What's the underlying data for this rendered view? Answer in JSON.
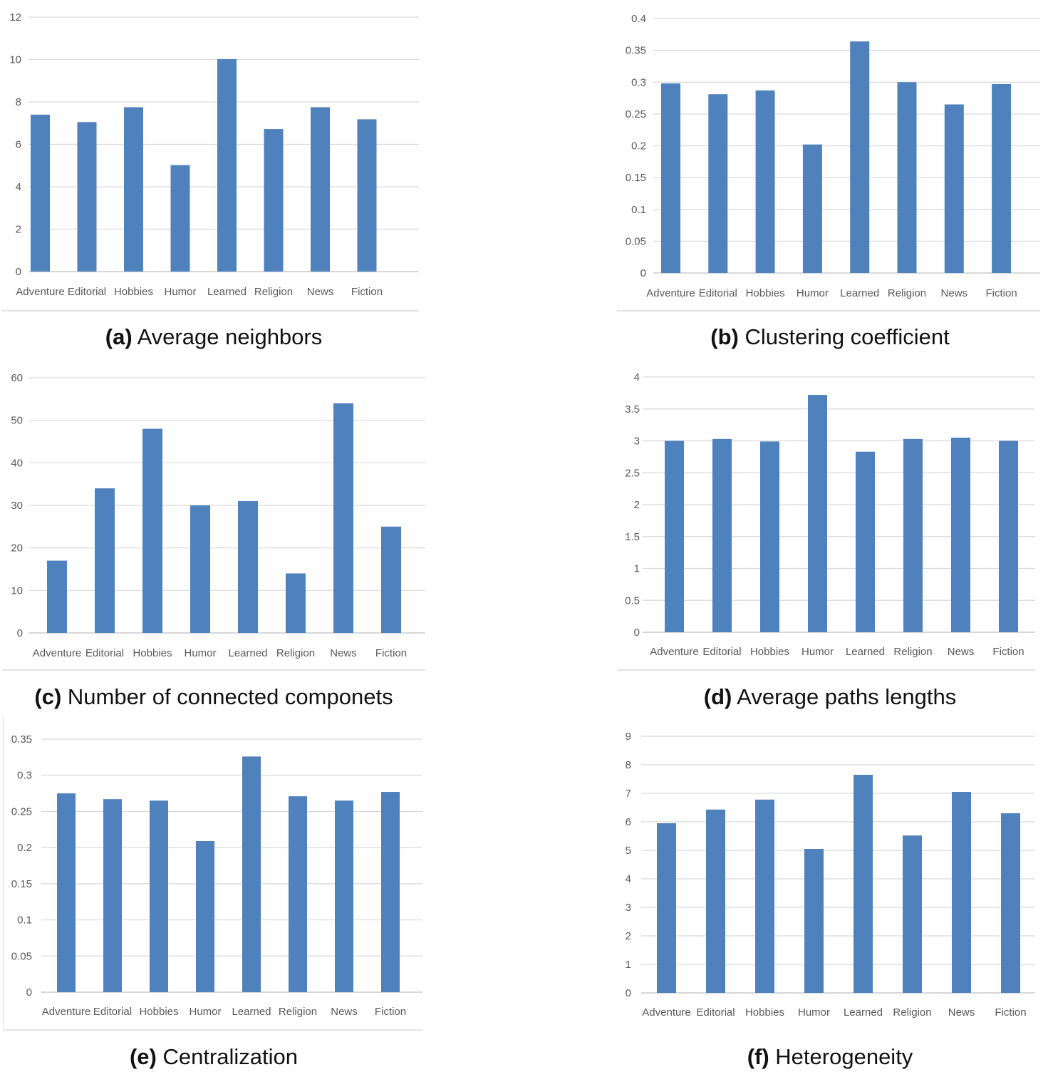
{
  "charts": {
    "color": "#4F81BD",
    "categories": [
      "Adventure",
      "Editorial",
      "Hobbies",
      "Humor",
      "Learned",
      "Religion",
      "News",
      "Fiction"
    ],
    "panels": [
      {
        "id": "a",
        "letter": "(a)",
        "caption": "Average neighbors"
      },
      {
        "id": "b",
        "letter": "(b)",
        "caption": "Clustering coefficient"
      },
      {
        "id": "c",
        "letter": "(c)",
        "caption": "Number of connected componets"
      },
      {
        "id": "d",
        "letter": "(d)",
        "caption": "Average paths lengths"
      },
      {
        "id": "e",
        "letter": "(e)",
        "caption": "Centralization"
      },
      {
        "id": "f",
        "letter": "(f)",
        "caption": "Heterogeneity"
      }
    ]
  },
  "chart_data": [
    {
      "type": "bar",
      "title": "Average neighbors",
      "xlabel": "",
      "ylabel": "",
      "categories": [
        "Adventure",
        "Editorial",
        "Hobbies",
        "Humor",
        "Learned",
        "Religion",
        "News",
        "Fiction"
      ],
      "values": [
        7.4,
        7.05,
        7.75,
        5.02,
        10.02,
        6.72,
        7.75,
        7.18
      ],
      "ylim": [
        0,
        12
      ],
      "yticks": [
        "0",
        "2",
        "4",
        "6",
        "8",
        "10",
        "12"
      ]
    },
    {
      "type": "bar",
      "title": "Clustering coefficient",
      "xlabel": "",
      "ylabel": "",
      "categories": [
        "Adventure",
        "Editorial",
        "Hobbies",
        "Humor",
        "Learned",
        "Religion",
        "News",
        "Fiction"
      ],
      "values": [
        0.298,
        0.281,
        0.287,
        0.202,
        0.364,
        0.3,
        0.265,
        0.297
      ],
      "ylim": [
        0,
        0.4
      ],
      "yticks": [
        "0",
        "0.05",
        "0.1",
        "0.15",
        "0.2",
        "0.25",
        "0.3",
        "0.35",
        "0.4"
      ]
    },
    {
      "type": "bar",
      "title": "Number of connected componets",
      "xlabel": "",
      "ylabel": "",
      "categories": [
        "Adventure",
        "Editorial",
        "Hobbies",
        "Humor",
        "Learned",
        "Religion",
        "News",
        "Fiction"
      ],
      "values": [
        17,
        34,
        48,
        30,
        31,
        14,
        54,
        25
      ],
      "ylim": [
        0,
        60
      ],
      "yticks": [
        "0",
        "10",
        "20",
        "30",
        "40",
        "50",
        "60"
      ]
    },
    {
      "type": "bar",
      "title": "Average paths lengths",
      "xlabel": "",
      "ylabel": "",
      "categories": [
        "Adventure",
        "Editorial",
        "Hobbies",
        "Humor",
        "Learned",
        "Religion",
        "News",
        "Fiction"
      ],
      "values": [
        3.0,
        3.03,
        2.99,
        3.72,
        2.83,
        3.03,
        3.05,
        3.0
      ],
      "ylim": [
        0,
        4
      ],
      "yticks": [
        "0",
        "0.5",
        "1",
        "1.5",
        "2",
        "2.5",
        "3",
        "3.5",
        "4"
      ]
    },
    {
      "type": "bar",
      "title": "Centralization",
      "xlabel": "",
      "ylabel": "",
      "categories": [
        "Adventure",
        "Editorial",
        "Hobbies",
        "Humor",
        "Learned",
        "Religion",
        "News",
        "Fiction"
      ],
      "values": [
        0.275,
        0.267,
        0.265,
        0.209,
        0.326,
        0.271,
        0.265,
        0.277
      ],
      "ylim": [
        0,
        0.35
      ],
      "yticks": [
        "0",
        "0.05",
        "0.1",
        "0.15",
        "0.2",
        "0.25",
        "0.3",
        "0.35"
      ]
    },
    {
      "type": "bar",
      "title": "Heterogeneity",
      "xlabel": "",
      "ylabel": "",
      "categories": [
        "Adventure",
        "Editorial",
        "Hobbies",
        "Humor",
        "Learned",
        "Religion",
        "News",
        "Fiction"
      ],
      "values": [
        5.95,
        6.43,
        6.78,
        5.05,
        7.65,
        5.52,
        7.05,
        6.3
      ],
      "ylim": [
        0,
        9
      ],
      "yticks": [
        "0",
        "1",
        "2",
        "3",
        "4",
        "5",
        "6",
        "7",
        "8",
        "9"
      ]
    }
  ]
}
